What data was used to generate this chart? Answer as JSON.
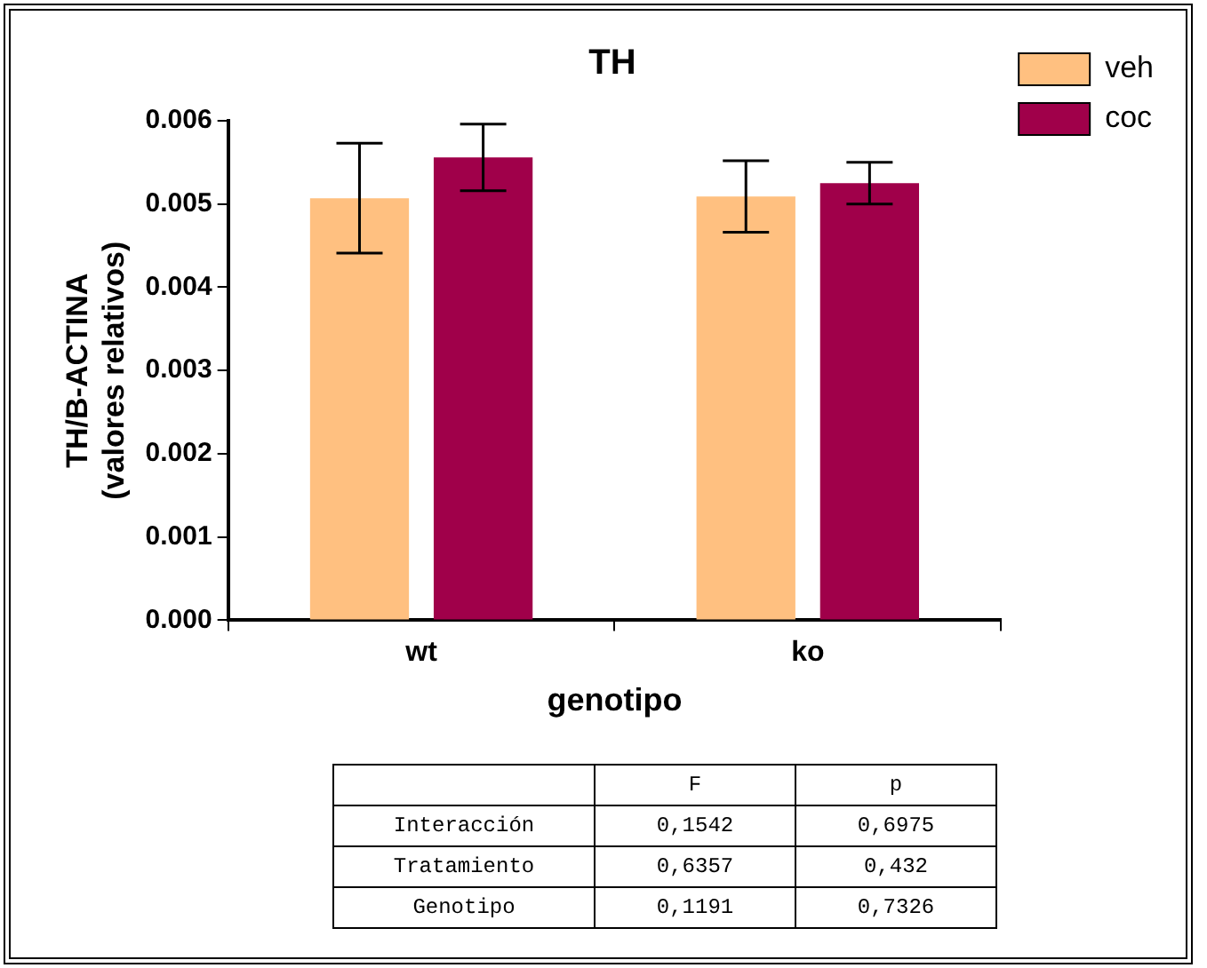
{
  "chart_data": {
    "type": "bar",
    "title": "TH",
    "xlabel": "genotipo",
    "ylabel": "TH/B-ACTINA\n(valores relativos)",
    "categories": [
      "wt",
      "ko"
    ],
    "series": [
      {
        "name": "veh",
        "color": "#ffc080",
        "values": [
          0.00507,
          0.00509
        ],
        "errors": [
          0.00066,
          0.00043
        ]
      },
      {
        "name": "coc",
        "color": "#a0004a",
        "values": [
          0.00556,
          0.00525
        ],
        "errors": [
          0.0004,
          0.00025
        ]
      }
    ],
    "ylim": [
      0,
      0.006
    ],
    "yticks": [
      {
        "value": 0,
        "label": "0.000"
      },
      {
        "value": 0.001,
        "label": "0.001"
      },
      {
        "value": 0.002,
        "label": "0.002"
      },
      {
        "value": 0.003,
        "label": "0.003"
      },
      {
        "value": 0.004,
        "label": "0.004"
      },
      {
        "value": 0.005,
        "label": "0.005"
      },
      {
        "value": 0.006,
        "label": "0.006"
      }
    ],
    "grid": false,
    "legend": "top right",
    "annotations": [
      "F",
      "p",
      "Interacción",
      "0,1542",
      "0,6975",
      "Tratamiento",
      "0,6357",
      "0,432",
      "Genotipo",
      "0,1191",
      "0,7326"
    ]
  }
}
